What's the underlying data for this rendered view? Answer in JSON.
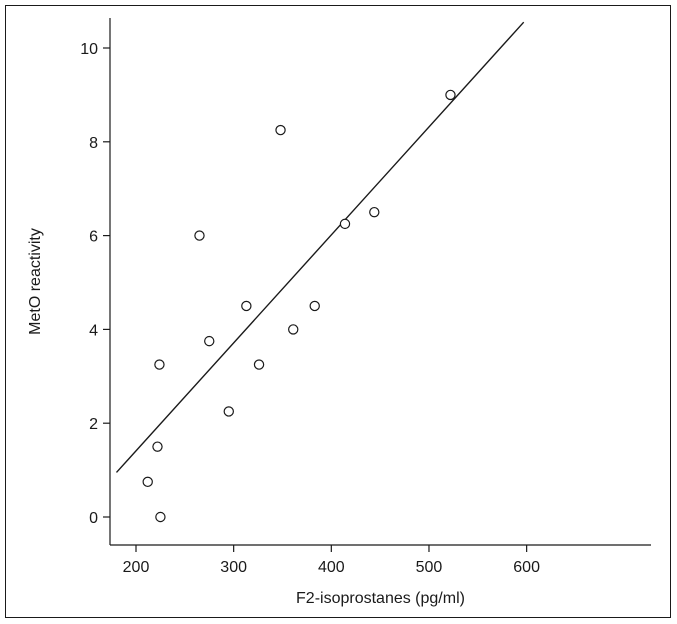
{
  "chart_data": {
    "type": "scatter",
    "title": "",
    "xlabel": "F2-isoprostanes (pg/ml)",
    "ylabel": "MetO reactivity",
    "xlim": [
      180,
      620
    ],
    "ylim": [
      -0.6,
      10.8
    ],
    "xticks": [
      200,
      300,
      400,
      500,
      600
    ],
    "yticks": [
      0,
      2,
      4,
      6,
      8,
      10
    ],
    "grid": false,
    "legend": "none",
    "series": [
      {
        "marker": "open-circle",
        "points": [
          {
            "x": 212,
            "y": 0.75
          },
          {
            "x": 222,
            "y": 1.5
          },
          {
            "x": 224,
            "y": 3.25
          },
          {
            "x": 225,
            "y": 0.0
          },
          {
            "x": 265,
            "y": 6.0
          },
          {
            "x": 275,
            "y": 3.75
          },
          {
            "x": 295,
            "y": 2.25
          },
          {
            "x": 313,
            "y": 4.5
          },
          {
            "x": 326,
            "y": 3.25
          },
          {
            "x": 348,
            "y": 8.25
          },
          {
            "x": 361,
            "y": 4.0
          },
          {
            "x": 383,
            "y": 4.5
          },
          {
            "x": 414,
            "y": 6.25
          },
          {
            "x": 444,
            "y": 6.5
          },
          {
            "x": 522,
            "y": 9.0
          }
        ]
      }
    ],
    "fit_line": {
      "x": [
        180,
        597
      ],
      "y": [
        0.95,
        10.55
      ]
    },
    "colors": {
      "ink": "#1a1a1a",
      "background": "#ffffff"
    }
  }
}
